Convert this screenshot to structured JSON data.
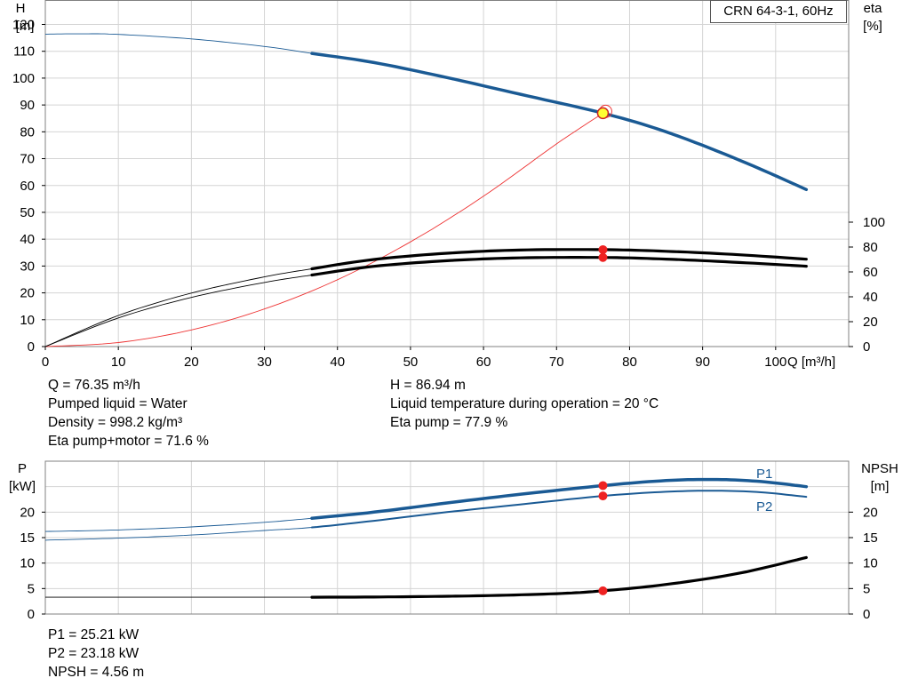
{
  "chart_data": [
    {
      "type": "line",
      "title": "CRN 64-3-1, 60Hz",
      "xlabel": "Q [m³/h]",
      "ylabel_left": [
        "H",
        "[m]"
      ],
      "ylabel_right": [
        "eta",
        "[%]"
      ],
      "xlim": [
        0,
        110
      ],
      "ylim_left": [
        0,
        120
      ],
      "ylim_right": [
        0,
        100
      ],
      "x_ticks": [
        "0",
        "10",
        "20",
        "30",
        "40",
        "50",
        "60",
        "70",
        "80",
        "90",
        "100"
      ],
      "y_ticks_left": [
        "0",
        "10",
        "20",
        "30",
        "40",
        "50",
        "60",
        "70",
        "80",
        "90",
        "100",
        "110",
        "120"
      ],
      "y_ticks_right": [
        "0",
        "20",
        "40",
        "60",
        "80",
        "100"
      ],
      "grid": true,
      "series": [
        {
          "color": "#1a5a94",
          "axis": "left",
          "width_class": "thick",
          "x": [
            0,
            5,
            10,
            20,
            30,
            36.5,
            45,
            55,
            65,
            76.35,
            85,
            95,
            104.2
          ],
          "y": [
            116.4,
            116.5,
            116.3,
            114.6,
            111.8,
            109.2,
            105.8,
            100.2,
            94.0,
            86.94,
            80.0,
            69.5,
            58.5
          ]
        },
        {
          "color": "#000000",
          "axis": "right",
          "width_class": "thick",
          "x": [
            0,
            10,
            20,
            30,
            36.5,
            45,
            55,
            65,
            76.35,
            85,
            95,
            104.2
          ],
          "y": [
            0,
            25.0,
            43.0,
            56.0,
            62.5,
            70.0,
            75.0,
            77.6,
            77.9,
            76.6,
            73.8,
            70.2
          ]
        },
        {
          "color": "#000000",
          "axis": "right",
          "width_class": "thick",
          "x": [
            0,
            10,
            20,
            30,
            36.5,
            45,
            55,
            65,
            76.35,
            85,
            95,
            104.2
          ],
          "y": [
            0,
            23.0,
            39.5,
            51.5,
            57.5,
            64.5,
            69.0,
            71.3,
            71.6,
            70.3,
            67.6,
            64.6
          ]
        },
        {
          "color": "#ee3333",
          "axis": "left",
          "width_class": "thin",
          "x": [
            0,
            10,
            20,
            30,
            40,
            50,
            60,
            70,
            76.35
          ],
          "y": [
            0,
            1.5,
            6.2,
            14.0,
            24.9,
            39.0,
            56.0,
            75.5,
            86.94
          ]
        }
      ],
      "duty_point": {
        "x": 76.35,
        "y": 86.94,
        "eta_pump": 77.9,
        "eta_total": 71.6
      }
    },
    {
      "type": "line",
      "xlabel": "",
      "ylabel_left": [
        "P",
        "[kW]"
      ],
      "ylabel_right": [
        "NPSH",
        "[m]"
      ],
      "xlim": [
        0,
        110
      ],
      "ylim": [
        0,
        30
      ],
      "y_ticks_left": [
        "0",
        "5",
        "10",
        "15",
        "20"
      ],
      "y_ticks_right": [
        "0",
        "5",
        "10",
        "15",
        "20"
      ],
      "grid": true,
      "series": [
        {
          "name": "P1",
          "color": "#1a5a94",
          "x": [
            0,
            10,
            20,
            30,
            36.5,
            45,
            55,
            65,
            76.35,
            85,
            92,
            98,
            104.2
          ],
          "y": [
            16.2,
            16.5,
            17.1,
            18.0,
            18.8,
            20.0,
            21.8,
            23.5,
            25.21,
            26.2,
            26.4,
            26.0,
            25.0
          ]
        },
        {
          "name": "P2",
          "color": "#1a5a94",
          "x": [
            0,
            10,
            20,
            30,
            36.5,
            45,
            55,
            65,
            76.35,
            85,
            92,
            98,
            104.2
          ],
          "y": [
            14.5,
            14.9,
            15.5,
            16.4,
            17.0,
            18.3,
            20.0,
            21.5,
            23.18,
            24.0,
            24.2,
            23.9,
            23.0
          ]
        },
        {
          "name": "NPSH",
          "color": "#000000",
          "x": [
            0,
            36.5,
            50,
            60,
            70,
            76.35,
            85,
            95,
            104.2
          ],
          "y": [
            3.3,
            3.3,
            3.4,
            3.6,
            4.0,
            4.56,
            5.8,
            8.0,
            11.1
          ]
        }
      ],
      "duty_point": {
        "x": 76.35,
        "P1": 25.21,
        "P2": 23.18,
        "NPSH": 4.56
      }
    }
  ],
  "info_top_left": [
    "Q = 76.35 m³/h",
    "Pumped liquid = Water",
    "Density = 998.2 kg/m³",
    "Eta pump+motor = 71.6 %"
  ],
  "info_top_right": [
    "H = 86.94 m",
    "Liquid temperature during operation = 20 °C",
    "Eta pump = 77.9 %"
  ],
  "info_bottom": [
    "P1 = 25.21 kW",
    "P2 = 23.18 kW",
    "NPSH = 4.56 m"
  ]
}
